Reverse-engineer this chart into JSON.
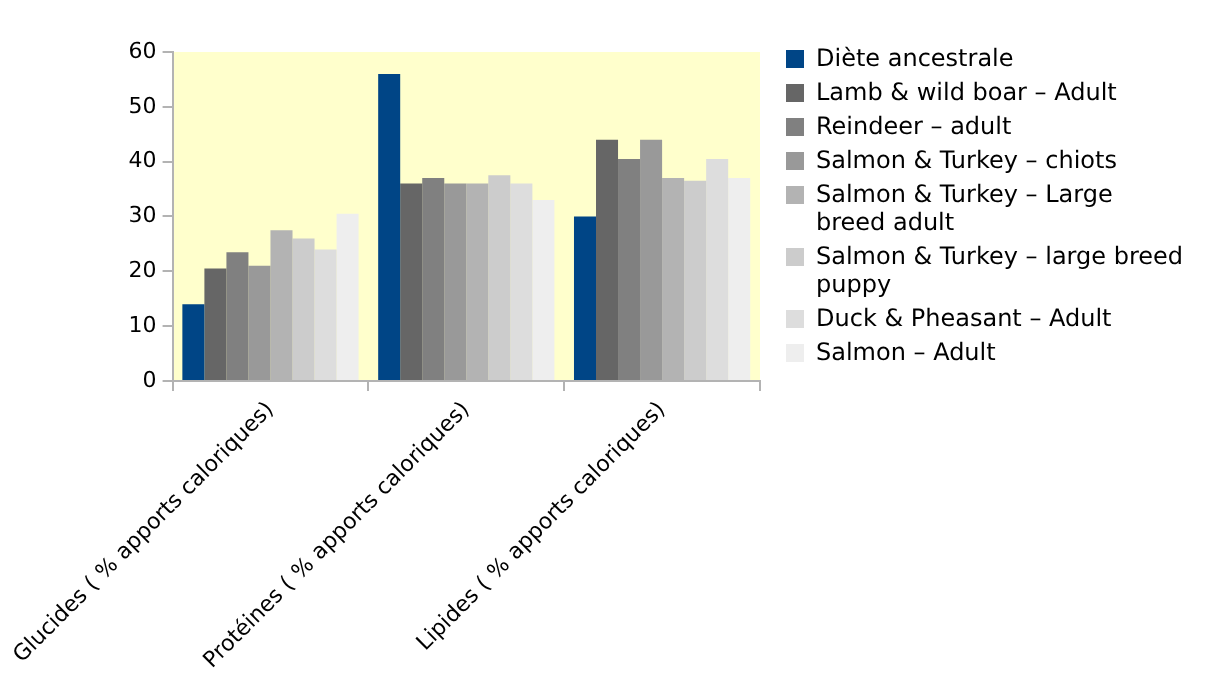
{
  "chart_data": {
    "type": "bar",
    "categories": [
      "Glucides ( % apports caloriques)",
      "Protéines ( % apports caloriques)",
      "Lipides ( % apports caloriques)"
    ],
    "series": [
      {
        "name": "Diète ancestrale",
        "color": "#004586",
        "values": [
          14,
          56,
          30
        ]
      },
      {
        "name": "Lamb & wild boar – Adult",
        "color": "#666666",
        "values": [
          20.5,
          36,
          44
        ]
      },
      {
        "name": "Reindeer – adult",
        "color": "#808080",
        "values": [
          23.5,
          37,
          40.5
        ]
      },
      {
        "name": "Salmon & Turkey – chiots",
        "color": "#999999",
        "values": [
          21,
          36,
          44
        ]
      },
      {
        "name": "Salmon & Turkey – Large breed adult",
        "color": "#b3b3b3",
        "values": [
          27.5,
          36,
          37
        ]
      },
      {
        "name": "Salmon & Turkey – large breed puppy",
        "color": "#cccccc",
        "values": [
          26,
          37.5,
          36.5
        ]
      },
      {
        "name": "Duck & Pheasant – Adult",
        "color": "#dddddd",
        "values": [
          24,
          36,
          40.5
        ]
      },
      {
        "name": "Salmon – Adult",
        "color": "#eeeeee",
        "values": [
          30.5,
          33,
          37
        ]
      }
    ],
    "ylim": [
      0,
      60
    ],
    "yticks": [
      0,
      10,
      20,
      30,
      40,
      50,
      60
    ],
    "grid": false,
    "legend": "right"
  }
}
